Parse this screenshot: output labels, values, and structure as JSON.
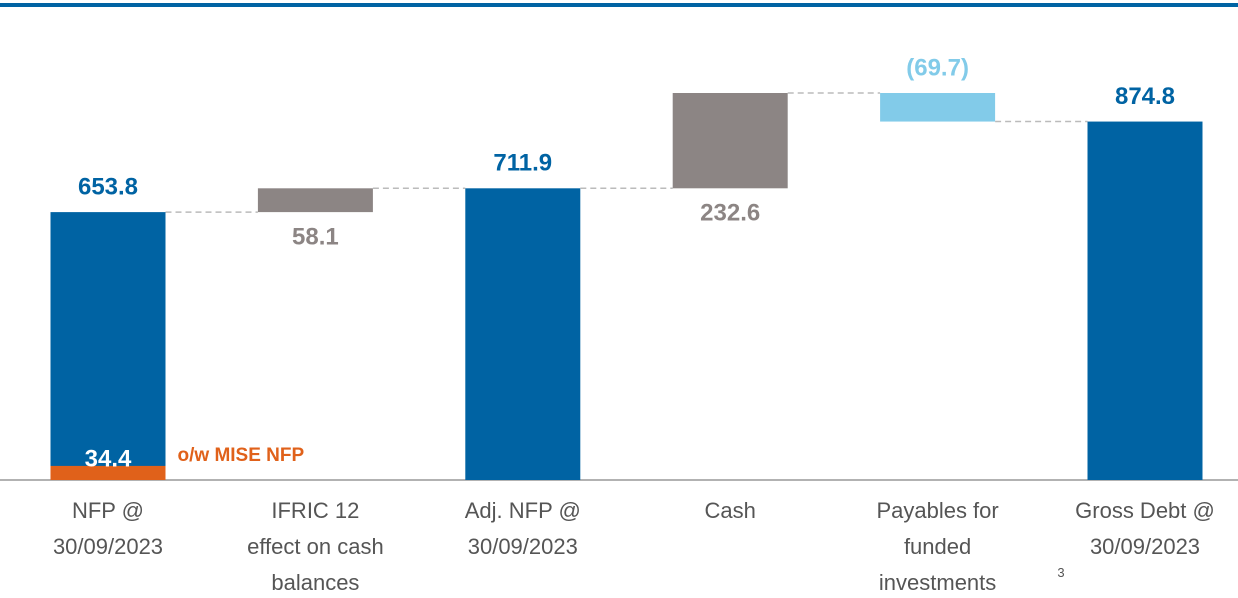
{
  "chart_data": {
    "type": "waterfall",
    "categories": [
      [
        "NFP @",
        "30/09/2023"
      ],
      [
        "IFRIC 12",
        "effect on cash",
        "balances"
      ],
      [
        "Adj. NFP @",
        "30/09/2023"
      ],
      [
        "Cash"
      ],
      [
        "Payables for",
        "funded",
        "investments"
      ],
      [
        "Gross Debt @",
        "30/09/2023"
      ]
    ],
    "category_notes": [
      null,
      null,
      null,
      null,
      "3",
      null
    ],
    "values": [
      653.8,
      58.1,
      711.9,
      232.6,
      -69.7,
      874.8
    ],
    "value_labels": [
      "653.8",
      "58.1",
      "711.9",
      "232.6",
      "(69.7)",
      "874.8"
    ],
    "bar_types": [
      "total",
      "increase",
      "total",
      "increase",
      "decrease",
      "total"
    ],
    "colors": {
      "total": "#0063a3",
      "increase": "#8c8584",
      "decrease": "#82cbe9"
    },
    "sub_values": [
      34.4,
      null,
      null,
      null,
      null,
      null
    ],
    "sub_label": "o/w MISE NFP",
    "sub_color": "#e0611a"
  }
}
